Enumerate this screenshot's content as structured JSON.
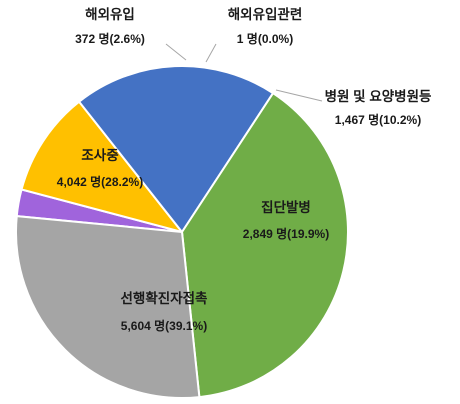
{
  "chart_data": {
    "type": "pie",
    "slices": [
      {
        "name": "해외유입",
        "count": "372 명",
        "pct": "(2.6%)",
        "value": 372,
        "color": "#A064DC"
      },
      {
        "name": "해외유입관련",
        "count": "1 명",
        "pct": "(0.0%)",
        "value": 1,
        "color": "#A064DC"
      },
      {
        "name": "병원 및 요양병원등",
        "count": "1,467 명",
        "pct": "(10.2%)",
        "value": 1467,
        "color": "#FFC000"
      },
      {
        "name": "집단발병",
        "count": "2,849 명",
        "pct": "(19.9%)",
        "value": 2849,
        "color": "#4472C4"
      },
      {
        "name": "선행확진자접촉",
        "count": "5,604 명",
        "pct": "(39.1%)",
        "value": 5604,
        "color": "#70AD47"
      },
      {
        "name": "조사중",
        "count": "4,042 명",
        "pct": "(28.2%)",
        "value": 4042,
        "color": "#A5A5A5"
      }
    ]
  }
}
